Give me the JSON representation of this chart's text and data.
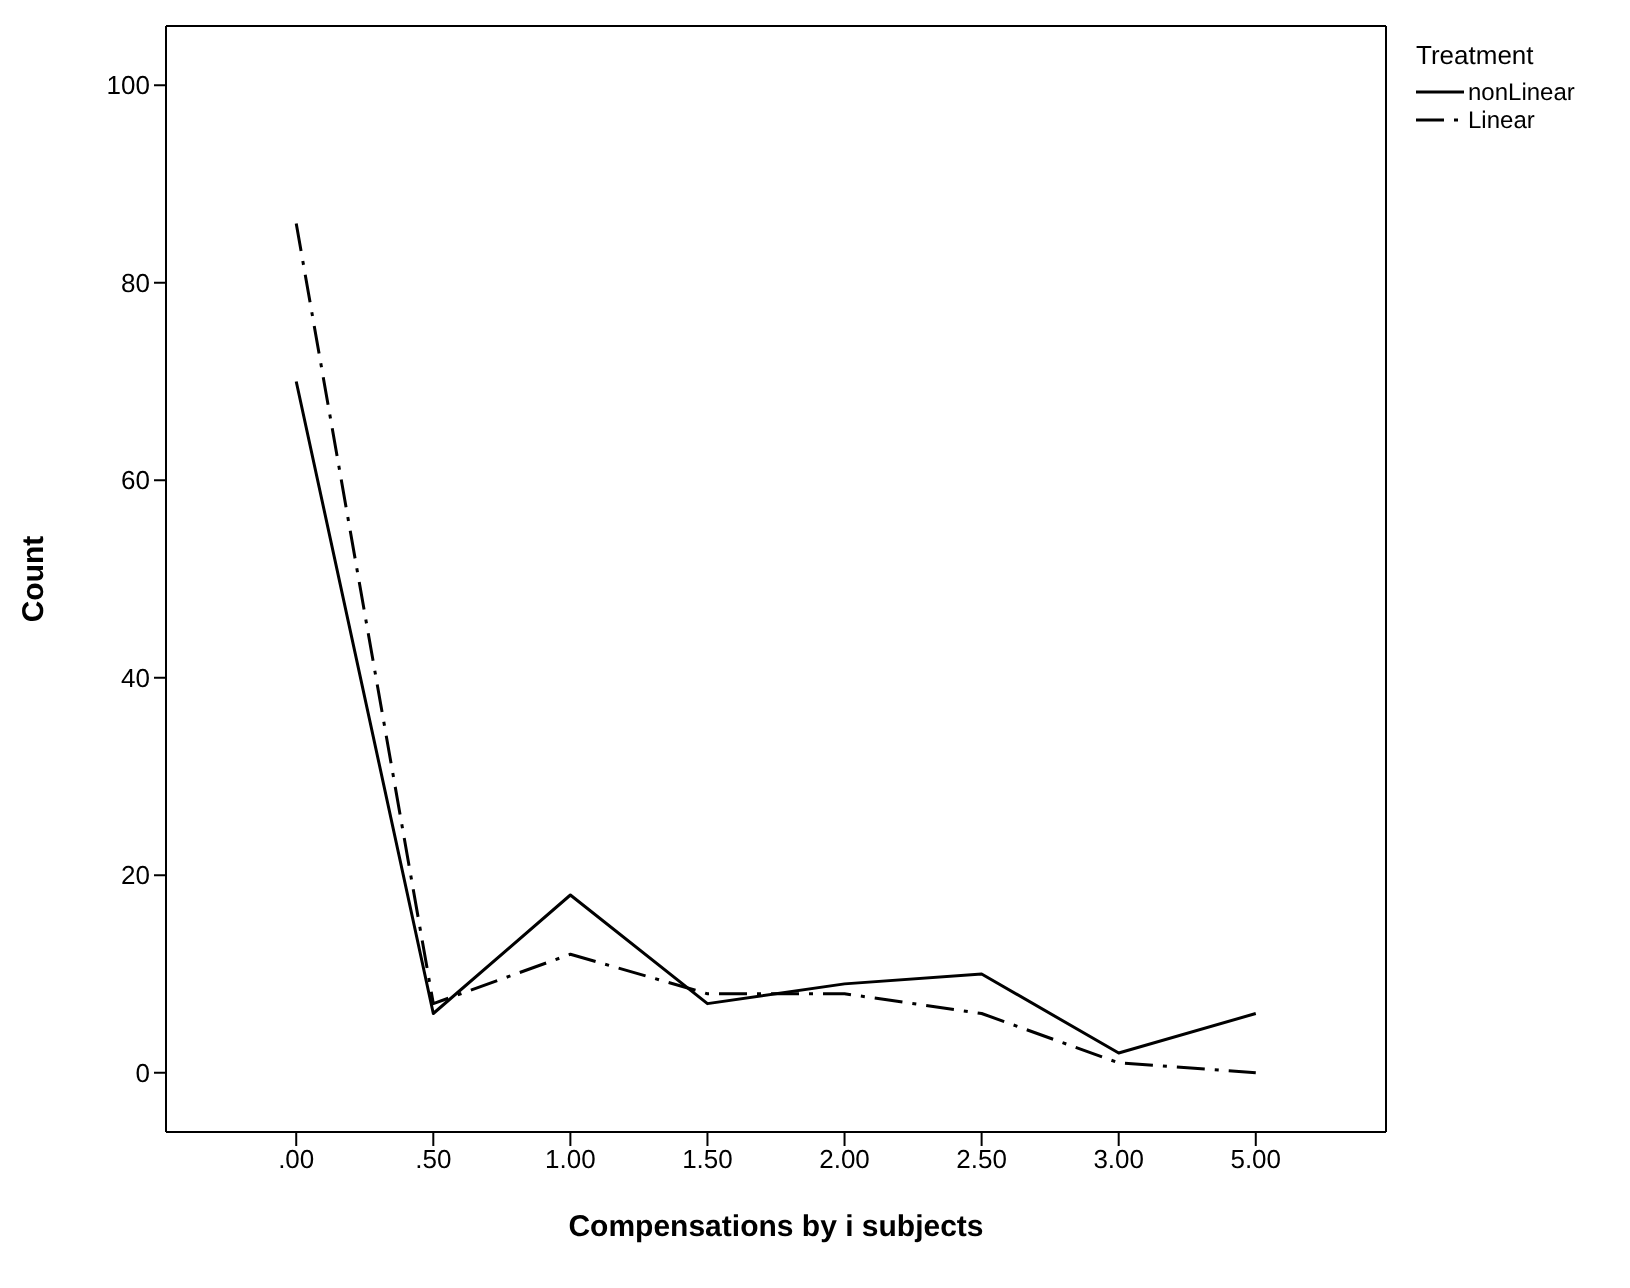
{
  "chart_data": {
    "type": "line",
    "xlabel": "Compensations by i subjects",
    "ylabel": "Count",
    "legend_title": "Treatment",
    "categories": [
      ".00",
      ".50",
      "1.00",
      "1.50",
      "2.00",
      "2.50",
      "3.00",
      "5.00"
    ],
    "series": [
      {
        "name": "nonLinear",
        "color": "#000000",
        "line_style": "solid",
        "values": [
          70,
          6,
          18,
          7,
          9,
          10,
          2,
          6
        ]
      },
      {
        "name": "Linear",
        "color": "#000000",
        "line_style": "dashed",
        "values": [
          86,
          7,
          12,
          8,
          8,
          6,
          1,
          0
        ]
      }
    ],
    "ylim": [
      -6,
      106
    ],
    "yticks": [
      0,
      20,
      40,
      60,
      80,
      100
    ],
    "grid": false,
    "legend": "top right",
    "marker": "none"
  }
}
